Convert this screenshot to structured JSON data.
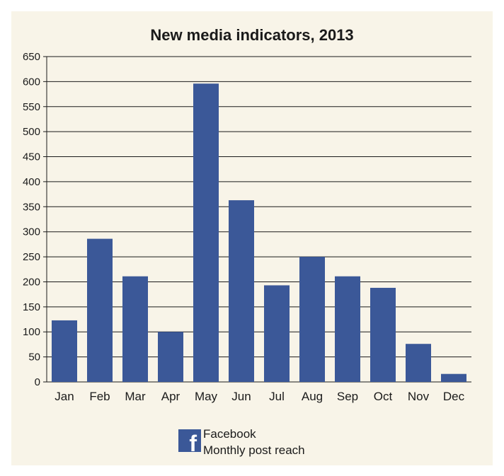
{
  "chart_data": {
    "type": "bar",
    "title": "New media indicators, 2013",
    "categories": [
      "Jan",
      "Feb",
      "Mar",
      "Apr",
      "May",
      "Jun",
      "Jul",
      "Aug",
      "Sep",
      "Oct",
      "Nov",
      "Dec"
    ],
    "series": [
      {
        "name": "Facebook Monthly post reach",
        "values": [
          123,
          286,
          211,
          100,
          596,
          363,
          193,
          250,
          211,
          188,
          76,
          16
        ],
        "color": "#3b5898"
      }
    ],
    "ylim": [
      0,
      650
    ],
    "yticks": [
      0,
      50,
      100,
      150,
      200,
      250,
      300,
      350,
      400,
      450,
      500,
      550,
      600,
      650
    ],
    "grid": true,
    "legend_position": "bottom-center"
  },
  "legend": {
    "icon": "facebook-icon",
    "line1": "Facebook",
    "line2": "Monthly post reach"
  },
  "colors": {
    "background": "#f8f4e8",
    "bar": "#3b5898"
  }
}
